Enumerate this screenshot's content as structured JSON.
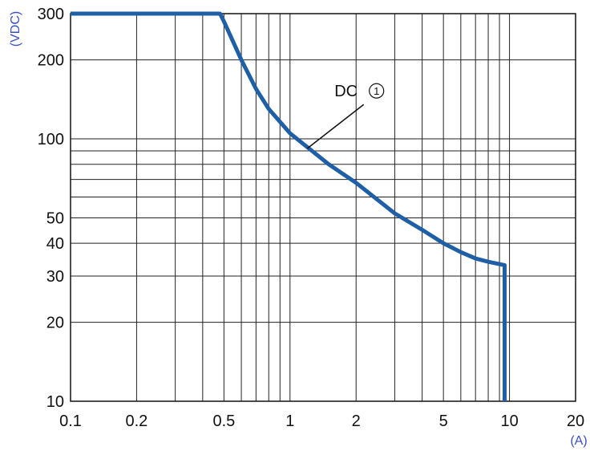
{
  "chart_data": {
    "type": "line",
    "title": "",
    "x_scale": "log",
    "y_scale": "log",
    "xlabel": "(A)",
    "ylabel": "(VDC)",
    "xlim": [
      0.1,
      20
    ],
    "ylim": [
      10,
      300
    ],
    "grid": true,
    "x_ticks": [
      0.1,
      0.2,
      0.5,
      1,
      2,
      5,
      10,
      20
    ],
    "x_tick_labels": [
      "0.1",
      "0.2",
      "0.5",
      "1",
      "2",
      "5",
      "10",
      "20"
    ],
    "y_ticks": [
      10,
      20,
      30,
      40,
      50,
      100,
      200,
      300
    ],
    "y_tick_labels": [
      "10",
      "20",
      "30",
      "40",
      "50",
      "100",
      "200",
      "300"
    ],
    "x_grid": [
      0.1,
      0.2,
      0.3,
      0.4,
      0.5,
      0.6,
      0.7,
      0.8,
      0.9,
      1,
      2,
      3,
      4,
      5,
      6,
      7,
      8,
      9,
      10,
      20
    ],
    "y_grid": [
      10,
      20,
      30,
      40,
      50,
      60,
      70,
      80,
      90,
      100,
      200,
      300
    ],
    "series": [
      {
        "name": "DC",
        "color": "#1f5fa6",
        "points": [
          [
            0.1,
            300
          ],
          [
            0.48,
            300
          ],
          [
            0.5,
            280
          ],
          [
            0.6,
            200
          ],
          [
            0.7,
            155
          ],
          [
            0.8,
            130
          ],
          [
            1,
            105
          ],
          [
            1.5,
            80
          ],
          [
            2,
            68
          ],
          [
            3,
            52
          ],
          [
            4,
            45
          ],
          [
            5,
            40
          ],
          [
            6,
            37
          ],
          [
            7,
            35
          ],
          [
            8,
            34
          ],
          [
            9.5,
            33
          ],
          [
            9.5,
            10
          ]
        ]
      }
    ],
    "annotations": [
      {
        "text": "DC",
        "marker": "1",
        "x": 1.8,
        "y": 145,
        "points_to": [
          1.2,
          92
        ]
      }
    ]
  },
  "colors": {
    "curve": "#1f5fa6",
    "axis_unit": "#3a4fc4",
    "grid": "#222222"
  }
}
